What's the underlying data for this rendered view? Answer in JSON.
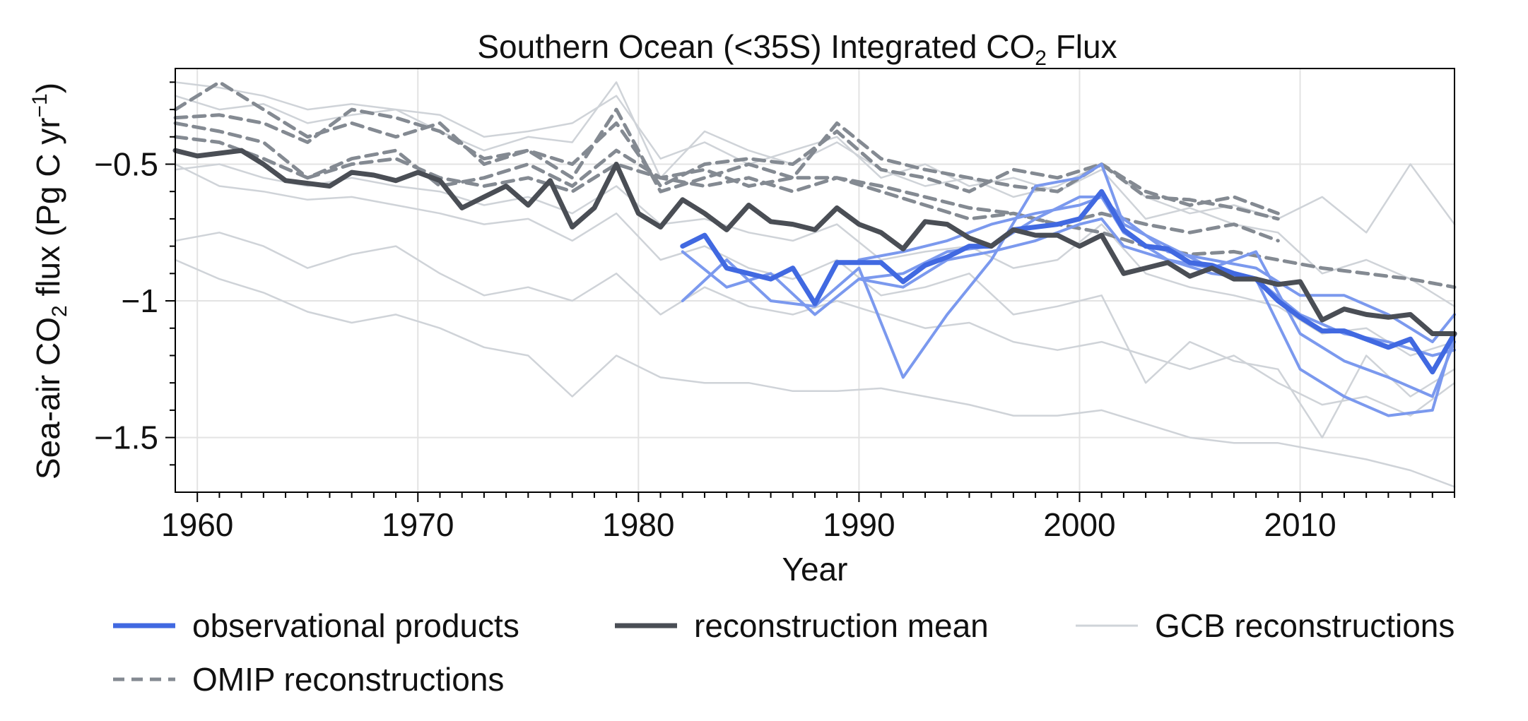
{
  "chart_data": {
    "type": "line",
    "title": {
      "main": "Southern Ocean (<35S) Integrated CO",
      "sub": "2",
      "tail": " Flux"
    },
    "xlabel": "Year",
    "ylabel": {
      "pre": "Sea-air CO",
      "sub": "2",
      "mid": " flux (Pg C yr",
      "sup": "−1",
      "post": ")"
    },
    "xlim": [
      1959,
      2017
    ],
    "ylim": [
      -1.7,
      -0.15
    ],
    "xticks": [
      1960,
      1970,
      1980,
      1990,
      2000,
      2010
    ],
    "xtick_labels": [
      "1960",
      "1970",
      "1980",
      "1990",
      "2000",
      "2010"
    ],
    "yticks": [
      -0.5,
      -1,
      -1.5
    ],
    "ytick_labels": [
      "−0.5",
      "−1",
      "−1.5"
    ],
    "grid": true,
    "colors": {
      "observational": "#4169e1",
      "observational_light": "#7b99ee",
      "mean": "#4a4e55",
      "omip": "#848a92",
      "gcb": "#cfd3d8"
    },
    "legend": {
      "placement": "below",
      "entries": [
        {
          "label": "observational products",
          "style": "obs"
        },
        {
          "label": "reconstruction mean",
          "style": "mean"
        },
        {
          "label": "GCB reconstructions",
          "style": "gcb"
        },
        {
          "label": "OMIP reconstructions",
          "style": "omip"
        }
      ]
    },
    "series": [
      {
        "group": "gcb",
        "x": [
          1959,
          1961,
          1963,
          1965,
          1967,
          1969,
          1971,
          1973,
          1975,
          1977,
          1979,
          1981,
          1983,
          1985,
          1987,
          1989,
          1991,
          1993,
          1995,
          1997,
          1999,
          2001,
          2003,
          2005,
          2007,
          2009,
          2011,
          2013,
          2015,
          2017
        ],
        "y": [
          -0.85,
          -0.92,
          -0.97,
          -1.04,
          -1.08,
          -1.05,
          -1.1,
          -1.17,
          -1.2,
          -1.35,
          -1.2,
          -1.28,
          -1.3,
          -1.3,
          -1.33,
          -1.33,
          -1.32,
          -1.35,
          -1.38,
          -1.42,
          -1.42,
          -1.4,
          -1.45,
          -1.5,
          -1.52,
          -1.52,
          -1.55,
          -1.58,
          -1.62,
          -1.68
        ]
      },
      {
        "group": "gcb",
        "x": [
          1959,
          1961,
          1963,
          1965,
          1967,
          1969,
          1971,
          1973,
          1975,
          1977,
          1979,
          1981,
          1983,
          1985,
          1987,
          1989,
          1991,
          1993,
          1995,
          1997,
          1999,
          2001,
          2003,
          2005,
          2007,
          2009,
          2011,
          2013,
          2015,
          2017
        ],
        "y": [
          -0.78,
          -0.75,
          -0.8,
          -0.88,
          -0.83,
          -0.8,
          -0.9,
          -0.98,
          -0.95,
          -1.0,
          -0.9,
          -1.05,
          -0.95,
          -1.02,
          -1.05,
          -1.0,
          -1.05,
          -1.1,
          -1.08,
          -1.15,
          -1.18,
          -1.15,
          -1.2,
          -1.25,
          -1.2,
          -1.3,
          -1.38,
          -1.35,
          -1.42,
          -1.3
        ]
      },
      {
        "group": "gcb",
        "x": [
          1959,
          1961,
          1963,
          1965,
          1967,
          1969,
          1971,
          1973,
          1975,
          1977,
          1979,
          1981,
          1983,
          1985,
          1987,
          1989,
          1991,
          1993,
          1995,
          1997,
          1999,
          2001,
          2003,
          2005,
          2007,
          2009,
          2011,
          2013,
          2015,
          2017
        ],
        "y": [
          -0.5,
          -0.58,
          -0.6,
          -0.63,
          -0.62,
          -0.65,
          -0.68,
          -0.72,
          -0.7,
          -0.78,
          -0.68,
          -0.85,
          -0.8,
          -0.88,
          -0.92,
          -0.85,
          -0.98,
          -0.95,
          -0.9,
          -1.05,
          -1.02,
          -0.98,
          -1.3,
          -1.15,
          -1.22,
          -1.25,
          -1.5,
          -1.2,
          -1.35,
          -1.25
        ]
      },
      {
        "group": "gcb",
        "x": [
          1959,
          1961,
          1963,
          1965,
          1967,
          1969,
          1971,
          1973,
          1975,
          1977,
          1979,
          1981,
          1983,
          1985,
          1987,
          1989,
          1991,
          1993,
          1995,
          1997,
          1999,
          2001,
          2003,
          2005,
          2007,
          2009,
          2011,
          2013,
          2015,
          2017
        ],
        "y": [
          -0.25,
          -0.3,
          -0.28,
          -0.35,
          -0.32,
          -0.3,
          -0.38,
          -0.45,
          -0.4,
          -0.42,
          -0.2,
          -0.55,
          -0.38,
          -0.45,
          -0.5,
          -0.42,
          -0.52,
          -0.58,
          -0.55,
          -0.62,
          -0.58,
          -0.5,
          -0.62,
          -0.68,
          -0.65,
          -0.7,
          -0.62,
          -0.75,
          -0.5,
          -0.72
        ]
      },
      {
        "group": "gcb",
        "x": [
          1959,
          1961,
          1963,
          1965,
          1967,
          1969,
          1971,
          1973,
          1975,
          1977,
          1979,
          1981,
          1983,
          1985,
          1987,
          1989,
          1991,
          1993,
          1995,
          1997,
          1999,
          2001,
          2003,
          2005,
          2007,
          2009,
          2011,
          2013,
          2015,
          2017
        ],
        "y": [
          -0.2,
          -0.22,
          -0.25,
          -0.3,
          -0.28,
          -0.3,
          -0.32,
          -0.4,
          -0.38,
          -0.35,
          -0.25,
          -0.48,
          -0.42,
          -0.5,
          -0.45,
          -0.4,
          -0.55,
          -0.5,
          -0.58,
          -0.55,
          -0.6,
          -0.52,
          -0.7,
          -0.66,
          -0.72,
          -0.75,
          -0.9,
          -0.85,
          -0.92,
          -1.02
        ]
      },
      {
        "group": "gcb",
        "x": [
          1959,
          1961,
          1963,
          1965,
          1967,
          1969,
          1971,
          1973,
          1975,
          1977,
          1979,
          1981,
          1983,
          1985,
          1987,
          1989,
          1991,
          1993,
          1995,
          1997,
          1999,
          2001,
          2003,
          2005,
          2007,
          2009,
          2011,
          2013,
          2015,
          2017
        ],
        "y": [
          -0.52,
          -0.5,
          -0.55,
          -0.58,
          -0.55,
          -0.58,
          -0.6,
          -0.65,
          -0.62,
          -0.68,
          -0.58,
          -0.72,
          -0.7,
          -0.75,
          -0.78,
          -0.72,
          -0.85,
          -0.82,
          -0.8,
          -0.88,
          -0.85,
          -0.72,
          -0.9,
          -0.95,
          -0.98,
          -1.02,
          -1.12,
          -1.1,
          -1.2,
          -1.15
        ]
      },
      {
        "group": "omip",
        "x": [
          1959,
          1961,
          1963,
          1965,
          1967,
          1969,
          1971,
          1973,
          1975,
          1977,
          1979,
          1981,
          1983,
          1985,
          1987,
          1989,
          1991,
          1993,
          1995,
          1997,
          1999,
          2001,
          2003,
          2005,
          2007,
          2009
        ],
        "y": [
          -0.3,
          -0.2,
          -0.3,
          -0.4,
          -0.35,
          -0.4,
          -0.35,
          -0.5,
          -0.45,
          -0.55,
          -0.3,
          -0.6,
          -0.55,
          -0.5,
          -0.55,
          -0.35,
          -0.48,
          -0.52,
          -0.55,
          -0.58,
          -0.6,
          -0.5,
          -0.6,
          -0.65,
          -0.62,
          -0.68
        ]
      },
      {
        "group": "omip",
        "x": [
          1959,
          1961,
          1963,
          1965,
          1967,
          1969,
          1971,
          1973,
          1975,
          1977,
          1979,
          1981,
          1983,
          1985,
          1987,
          1989,
          1991,
          1993,
          1995,
          1997,
          1999,
          2001,
          2003,
          2005,
          2007,
          2009
        ],
        "y": [
          -0.33,
          -0.32,
          -0.35,
          -0.42,
          -0.3,
          -0.33,
          -0.38,
          -0.48,
          -0.45,
          -0.5,
          -0.35,
          -0.58,
          -0.5,
          -0.48,
          -0.5,
          -0.38,
          -0.52,
          -0.55,
          -0.6,
          -0.52,
          -0.55,
          -0.5,
          -0.62,
          -0.63,
          -0.66,
          -0.7
        ]
      },
      {
        "group": "omip",
        "x": [
          1959,
          1961,
          1963,
          1965,
          1967,
          1969,
          1971,
          1973,
          1975,
          1977,
          1979,
          1981,
          1983,
          1985,
          1987,
          1989,
          1991,
          1993,
          1995,
          1997,
          1999,
          2001,
          2003,
          2005,
          2007,
          2009
        ],
        "y": [
          -0.4,
          -0.42,
          -0.48,
          -0.55,
          -0.48,
          -0.45,
          -0.58,
          -0.55,
          -0.5,
          -0.58,
          -0.45,
          -0.55,
          -0.58,
          -0.55,
          -0.6,
          -0.55,
          -0.6,
          -0.65,
          -0.7,
          -0.68,
          -0.72,
          -0.68,
          -0.72,
          -0.75,
          -0.72,
          -0.78
        ]
      },
      {
        "group": "omip",
        "x": [
          1959,
          1961,
          1963,
          1965,
          1967,
          1969,
          1971,
          1973,
          1975,
          1977,
          1979,
          1981,
          1983,
          1985,
          1987,
          1989,
          1991,
          1993,
          1995,
          1997,
          1999,
          2001,
          2003,
          2005,
          2007,
          2009,
          2011,
          2013,
          2015,
          2017
        ],
        "y": [
          -0.35,
          -0.38,
          -0.42,
          -0.55,
          -0.5,
          -0.48,
          -0.55,
          -0.58,
          -0.55,
          -0.6,
          -0.5,
          -0.55,
          -0.52,
          -0.58,
          -0.55,
          -0.55,
          -0.58,
          -0.62,
          -0.66,
          -0.68,
          -0.72,
          -0.75,
          -0.8,
          -0.83,
          -0.82,
          -0.85,
          -0.88,
          -0.9,
          -0.92,
          -0.95
        ]
      },
      {
        "group": "obs_light",
        "x": [
          1982,
          1984,
          1986,
          1988,
          1990,
          1992,
          1994,
          1996,
          1998,
          2000,
          2001,
          2002,
          2004,
          2006,
          2008,
          2010,
          2012,
          2014,
          2016,
          2017
        ],
        "y": [
          -1.0,
          -0.85,
          -1.0,
          -1.02,
          -0.88,
          -1.28,
          -1.05,
          -0.85,
          -0.58,
          -0.55,
          -0.5,
          -0.72,
          -0.8,
          -0.88,
          -0.82,
          -1.12,
          -1.22,
          -1.28,
          -1.35,
          -1.15
        ]
      },
      {
        "group": "obs_light",
        "x": [
          1982,
          1984,
          1986,
          1988,
          1990,
          1992,
          1994,
          1996,
          1998,
          2000,
          2001,
          2002,
          2004,
          2006,
          2008,
          2010,
          2012,
          2014,
          2016,
          2017
        ],
        "y": [
          -0.82,
          -0.95,
          -0.9,
          -1.05,
          -0.92,
          -0.9,
          -0.82,
          -0.8,
          -0.7,
          -0.62,
          -0.62,
          -0.75,
          -0.85,
          -0.9,
          -0.92,
          -1.25,
          -1.35,
          -1.42,
          -1.4,
          -1.12
        ]
      },
      {
        "group": "obs_light",
        "x": [
          1990,
          1992,
          1994,
          1996,
          1998,
          2000,
          2001,
          2002,
          2004,
          2006,
          2008,
          2010,
          2012,
          2014,
          2016,
          2017
        ],
        "y": [
          -0.85,
          -0.82,
          -0.78,
          -0.72,
          -0.68,
          -0.65,
          -0.62,
          -0.7,
          -0.82,
          -0.85,
          -0.88,
          -0.98,
          -0.98,
          -1.05,
          -1.15,
          -1.05
        ]
      },
      {
        "group": "obs_light",
        "x": [
          1990,
          1992,
          1994,
          1996,
          1998,
          2000,
          2001,
          2002,
          2004,
          2006,
          2008,
          2010,
          2012,
          2014,
          2016,
          2017
        ],
        "y": [
          -0.92,
          -0.95,
          -0.85,
          -0.82,
          -0.78,
          -0.72,
          -0.7,
          -0.8,
          -0.85,
          -0.88,
          -0.92,
          -1.05,
          -1.12,
          -1.15,
          -1.2,
          -1.18
        ]
      },
      {
        "group": "obs_mean",
        "x": [
          1982,
          1983,
          1984,
          1985,
          1986,
          1987,
          1988,
          1989,
          1990,
          1991,
          1992,
          1993,
          1994,
          1995,
          1996,
          1997,
          1998,
          1999,
          2000,
          2001,
          2002,
          2003,
          2004,
          2005,
          2006,
          2007,
          2008,
          2009,
          2010,
          2011,
          2012,
          2013,
          2014,
          2015,
          2016,
          2017
        ],
        "y": [
          -0.8,
          -0.76,
          -0.88,
          -0.9,
          -0.92,
          -0.88,
          -1.01,
          -0.86,
          -0.86,
          -0.86,
          -0.93,
          -0.87,
          -0.84,
          -0.8,
          -0.8,
          -0.74,
          -0.73,
          -0.72,
          -0.7,
          -0.6,
          -0.74,
          -0.8,
          -0.81,
          -0.86,
          -0.87,
          -0.9,
          -0.92,
          -1.0,
          -1.06,
          -1.11,
          -1.11,
          -1.14,
          -1.17,
          -1.14,
          -1.26,
          -1.12
        ]
      },
      {
        "group": "mean",
        "x": [
          1959,
          1960,
          1961,
          1962,
          1963,
          1964,
          1965,
          1966,
          1967,
          1968,
          1969,
          1970,
          1971,
          1972,
          1973,
          1974,
          1975,
          1976,
          1977,
          1978,
          1979,
          1980,
          1981,
          1982,
          1983,
          1984,
          1985,
          1986,
          1987,
          1988,
          1989,
          1990,
          1991,
          1992,
          1993,
          1994,
          1995,
          1996,
          1997,
          1998,
          1999,
          2000,
          2001,
          2002,
          2003,
          2004,
          2005,
          2006,
          2007,
          2008,
          2009,
          2010,
          2011,
          2012,
          2013,
          2014,
          2015,
          2016,
          2017
        ],
        "y": [
          -0.45,
          -0.47,
          -0.46,
          -0.45,
          -0.5,
          -0.56,
          -0.57,
          -0.58,
          -0.53,
          -0.54,
          -0.56,
          -0.53,
          -0.56,
          -0.66,
          -0.62,
          -0.58,
          -0.65,
          -0.56,
          -0.73,
          -0.66,
          -0.5,
          -0.68,
          -0.73,
          -0.63,
          -0.68,
          -0.74,
          -0.65,
          -0.71,
          -0.72,
          -0.74,
          -0.66,
          -0.72,
          -0.75,
          -0.81,
          -0.71,
          -0.72,
          -0.77,
          -0.8,
          -0.74,
          -0.76,
          -0.76,
          -0.8,
          -0.76,
          -0.9,
          -0.88,
          -0.86,
          -0.91,
          -0.88,
          -0.92,
          -0.92,
          -0.94,
          -0.93,
          -1.07,
          -1.03,
          -1.05,
          -1.06,
          -1.05,
          -1.12,
          -1.12
        ]
      }
    ]
  }
}
